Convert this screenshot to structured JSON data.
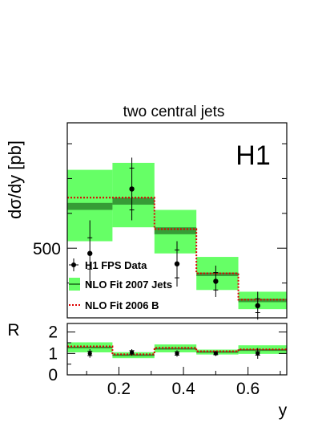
{
  "chart_data": [
    {
      "type": "bar",
      "title": "two central jets",
      "ylabel": "dσ/dy [pb]",
      "xlabel": "",
      "y_tick_labels": [
        "500"
      ],
      "ylim": [
        300,
        860
      ],
      "xlim": [
        0.04,
        0.72
      ],
      "stamp": "H1",
      "bins": [
        [
          0.04,
          0.18
        ],
        [
          0.18,
          0.31
        ],
        [
          0.31,
          0.44
        ],
        [
          0.44,
          0.57
        ],
        [
          0.57,
          0.72
        ]
      ],
      "series": [
        {
          "name": "H1 FPS Data",
          "kind": "data",
          "x": [
            0.11,
            0.24,
            0.38,
            0.5,
            0.63
          ],
          "y": [
            485,
            670,
            455,
            405,
            335
          ],
          "stat_err": [
            45,
            60,
            40,
            25,
            20
          ],
          "total_err": [
            95,
            90,
            65,
            45,
            40
          ]
        },
        {
          "name": "NLO Fit 2007 Jets",
          "kind": "band",
          "central": [
            620,
            635,
            550,
            425,
            350
          ],
          "band_low": [
            520,
            560,
            485,
            380,
            325
          ],
          "band_high": [
            725,
            745,
            610,
            475,
            375
          ],
          "inner_low": [
            610,
            625,
            540,
            420,
            345
          ],
          "inner_high": [
            630,
            645,
            560,
            430,
            355
          ],
          "color": "#66ff66",
          "line_color": "#2e8b2e"
        },
        {
          "name": "NLO Fit 2006 B",
          "kind": "line",
          "values": [
            645,
            645,
            555,
            428,
            352
          ],
          "color": "#dd0000",
          "style": "dotted"
        }
      ],
      "legend": "lower-left"
    },
    {
      "type": "bar",
      "title": "",
      "ylabel": "R",
      "xlabel": "y",
      "ylim": [
        0,
        2.4
      ],
      "xlim": [
        0.04,
        0.72
      ],
      "y_tick_labels": [
        "0",
        "1",
        "2"
      ],
      "x_tick_labels": [
        "0.2",
        "0.4",
        "0.6"
      ],
      "bins": [
        [
          0.04,
          0.18
        ],
        [
          0.18,
          0.31
        ],
        [
          0.31,
          0.44
        ],
        [
          0.44,
          0.57
        ],
        [
          0.57,
          0.72
        ]
      ],
      "series": [
        {
          "name": "H1 FPS Data",
          "kind": "data",
          "x": [
            0.11,
            0.24,
            0.38,
            0.5,
            0.63
          ],
          "y": [
            1.0,
            1.05,
            1.0,
            1.0,
            1.0
          ],
          "stat_err": [
            0.1,
            0.08,
            0.08,
            0.06,
            0.08
          ],
          "total_err": [
            0.2,
            0.15,
            0.15,
            0.12,
            0.25
          ]
        },
        {
          "name": "NLO Fit 2007 Jets",
          "kind": "band",
          "central": [
            1.28,
            0.92,
            1.22,
            1.07,
            1.16
          ],
          "band_low": [
            1.05,
            0.78,
            1.05,
            0.95,
            0.98
          ],
          "band_high": [
            1.52,
            1.06,
            1.42,
            1.18,
            1.38
          ],
          "color": "#66ff66",
          "line_color": "#2e8b2e"
        },
        {
          "name": "NLO Fit 2006 B",
          "kind": "line",
          "values": [
            1.33,
            0.96,
            1.26,
            1.1,
            1.19
          ],
          "color": "#dd0000",
          "style": "dotted"
        }
      ]
    }
  ]
}
